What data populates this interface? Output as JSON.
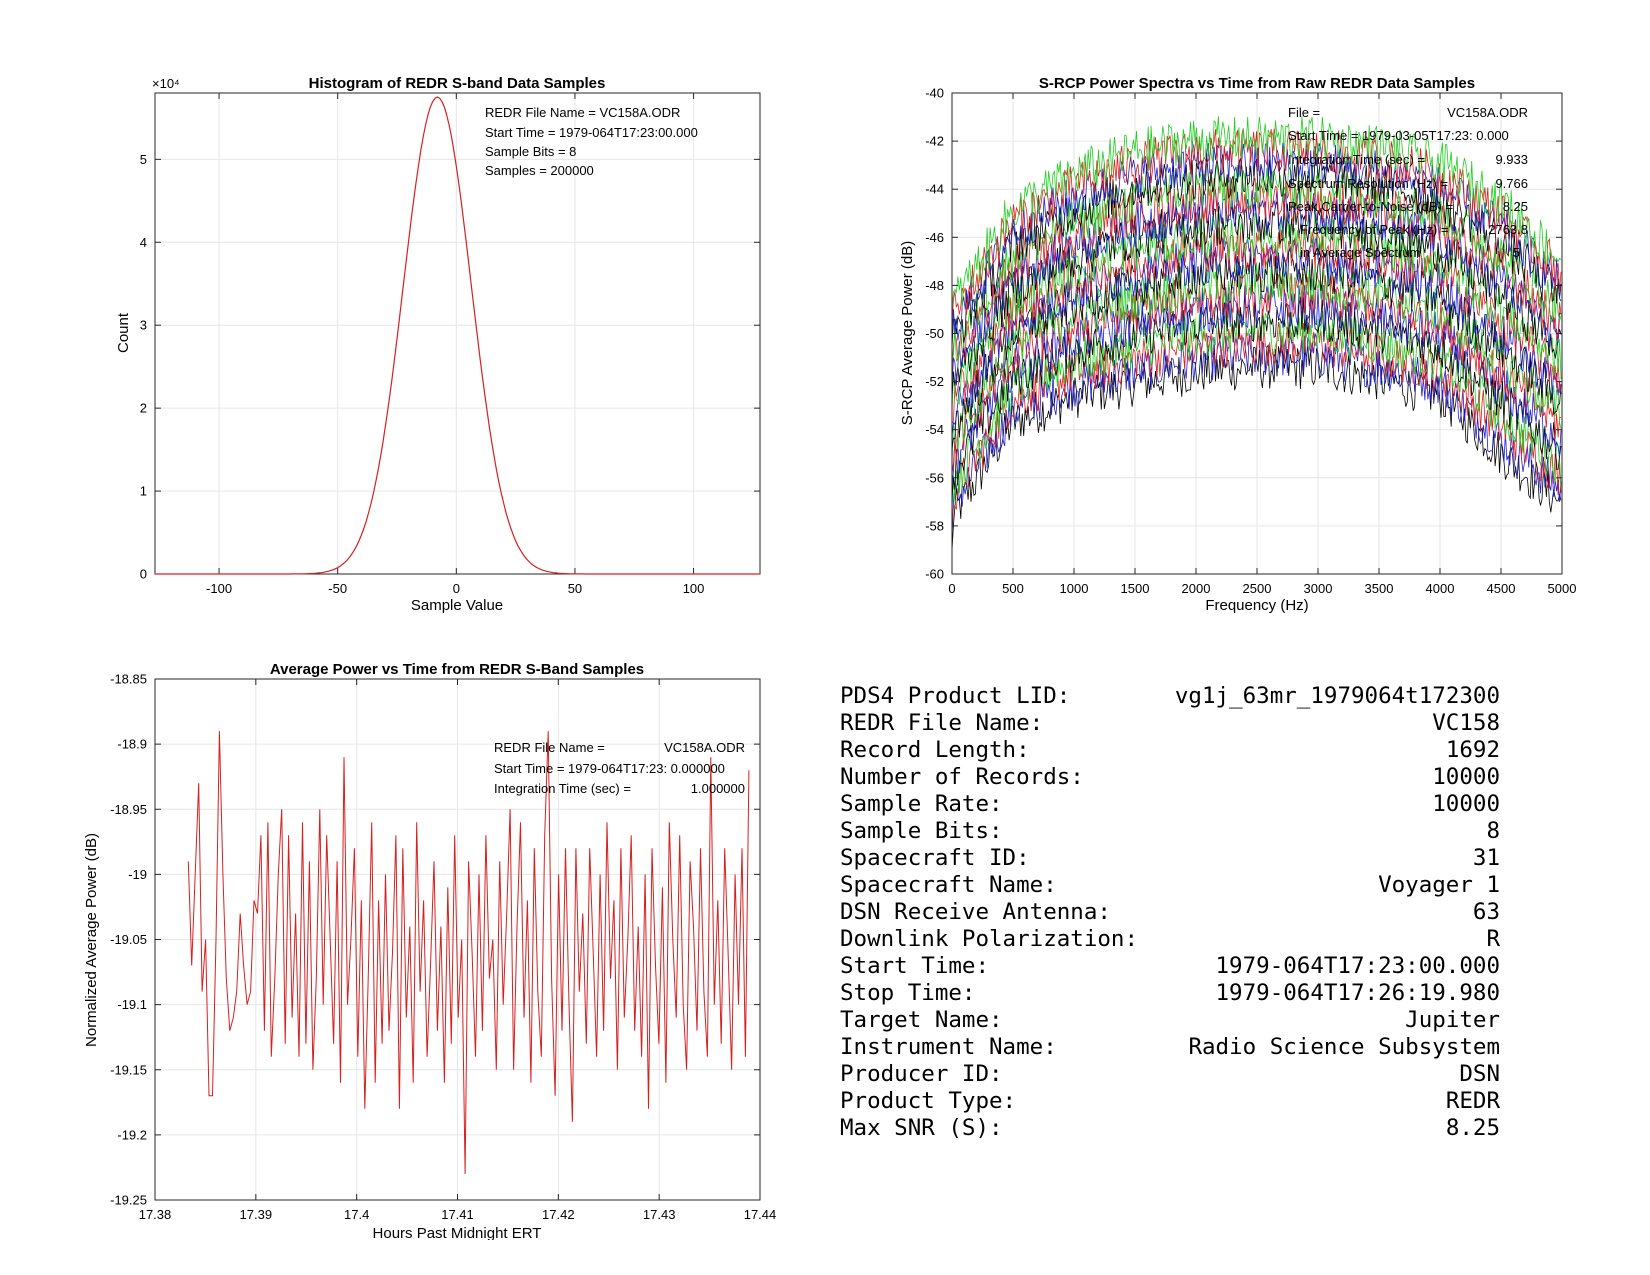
{
  "charts": {
    "histogram": {
      "title": "Histogram of REDR S-band Data Samples",
      "xlabel": "Sample Value",
      "ylabel": "Count",
      "exponent_label": "×10⁴",
      "annotations": [
        "REDR File Name = VC158A.ODR",
        "Start Time = 1979-064T17:23:00.000",
        "Sample Bits = 8",
        "Samples = 200000"
      ]
    },
    "spectra": {
      "title": "S-RCP Power Spectra vs Time from Raw REDR Data Samples",
      "xlabel": "Frequency (Hz)",
      "ylabel": "S-RCP Average Power (dB)",
      "annotations": [
        {
          "label": "File =",
          "value": "VC158A.ODR"
        },
        {
          "label": "Start Time = 1979-03-05T17:23: 0.000",
          "value": ""
        },
        {
          "label": "Integration Time (sec) =",
          "value": "9.933"
        },
        {
          "label": "Spectrum Resolution (Hz) =",
          "value": "9.766"
        },
        {
          "label": "Peak Carrier-to-Noise (dB) =",
          "value": "8.25"
        },
        {
          "label": "Frequency of Peak (Hz) =",
          "value": "2763.8"
        },
        {
          "label": "in Average Spectrum",
          "value": "5"
        }
      ]
    },
    "power": {
      "title": "Average Power vs Time from REDR S-Band Samples",
      "xlabel": "Hours Past Midnight ERT",
      "ylabel": "Normalized Average Power (dB)",
      "annotations": [
        {
          "label": "REDR File Name =",
          "value": "VC158A.ODR"
        },
        {
          "label": "Start Time = 1979-064T17:23: 0.000000",
          "value": ""
        },
        {
          "label": "Integration Time (sec) =",
          "value": "1.000000"
        }
      ]
    }
  },
  "chart_data": [
    {
      "type": "line",
      "title": "Histogram of REDR S-band Data Samples",
      "xlabel": "Sample Value",
      "ylabel": "Count",
      "xlim": [
        -127,
        128
      ],
      "ylim": [
        0,
        58000
      ],
      "xticks": [
        -100,
        -50,
        0,
        50,
        100
      ],
      "yticks": [
        0,
        10000,
        20000,
        30000,
        40000,
        50000
      ],
      "ytick_labels": [
        "0",
        "1",
        "2",
        "3",
        "4",
        "5"
      ],
      "grid": true,
      "color": "#d62020",
      "distribution": {
        "mean": -8,
        "stdev": 14.3,
        "peak": 57500
      },
      "series": [
        {
          "values": "computed from distribution over xlim"
        }
      ]
    },
    {
      "type": "line",
      "title": "S-RCP Power Spectra vs Time from Raw REDR Data Samples",
      "xlabel": "Frequency (Hz)",
      "ylabel": "S-RCP Average Power (dB)",
      "xlim": [
        0,
        5000
      ],
      "ylim": [
        -60,
        -40
      ],
      "xticks": [
        0,
        500,
        1000,
        1500,
        2000,
        2500,
        3000,
        3500,
        4000,
        4500,
        5000
      ],
      "yticks": [
        -60,
        -58,
        -56,
        -54,
        -52,
        -50,
        -48,
        -46,
        -44,
        -42,
        -40
      ],
      "grid": true,
      "colors": [
        "#000000",
        "#2020d0",
        "#e02020",
        "#20d020"
      ],
      "envelope_top_db": [
        -48,
        -44,
        -42.5,
        -41.5,
        -41,
        -41,
        -41,
        -41.3,
        -42,
        -43.5,
        -46
      ],
      "envelope_bottom_db": [
        -58.5,
        -54.5,
        -53.5,
        -53,
        -52.5,
        -52.3,
        -52.3,
        -52.8,
        -53.5,
        -56,
        -58
      ],
      "num_spectra": 20
    },
    {
      "type": "line",
      "title": "Average Power vs Time from REDR S-Band Samples",
      "xlabel": "Hours Past Midnight ERT",
      "ylabel": "Normalized Average Power (dB)",
      "xlim": [
        17.38,
        17.44
      ],
      "ylim": [
        -19.25,
        -18.85
      ],
      "xticks": [
        17.38,
        17.39,
        17.4,
        17.41,
        17.42,
        17.43,
        17.44
      ],
      "yticks": [
        -18.85,
        -18.9,
        -18.95,
        -19,
        -19.05,
        -19.1,
        -19.15,
        -19.2,
        -19.25
      ],
      "grid": true,
      "color": "#d62020",
      "x_range": [
        17.3833,
        17.4389
      ],
      "y": [
        -18.99,
        -19.07,
        -19.0,
        -18.93,
        -19.09,
        -19.05,
        -19.17,
        -19.17,
        -19.05,
        -18.89,
        -19.0,
        -19.08,
        -19.12,
        -19.11,
        -19.09,
        -19.03,
        -19.07,
        -19.1,
        -19.09,
        -19.02,
        -19.03,
        -18.97,
        -19.12,
        -18.96,
        -19.14,
        -19.08,
        -19.0,
        -18.95,
        -19.13,
        -18.97,
        -19.11,
        -19.03,
        -19.14,
        -18.96,
        -19.13,
        -18.99,
        -19.15,
        -19.08,
        -18.95,
        -19.1,
        -18.97,
        -19.05,
        -19.13,
        -18.99,
        -19.16,
        -18.91,
        -19.1,
        -19.05,
        -18.98,
        -19.14,
        -19.02,
        -19.18,
        -19.08,
        -18.96,
        -19.16,
        -19.02,
        -19.13,
        -19.0,
        -19.12,
        -19.06,
        -18.97,
        -19.18,
        -18.98,
        -19.11,
        -19.04,
        -19.16,
        -18.96,
        -19.09,
        -19.02,
        -19.14,
        -19.07,
        -18.99,
        -19.12,
        -19.04,
        -19.16,
        -19.01,
        -19.13,
        -18.97,
        -19.11,
        -19.05,
        -19.23,
        -18.99,
        -19.06,
        -19.14,
        -19.0,
        -19.12,
        -18.97,
        -19.08,
        -19.05,
        -19.15,
        -18.99,
        -19.1,
        -19.03,
        -18.95,
        -19.15,
        -19.04,
        -18.96,
        -19.11,
        -19.02,
        -19.16,
        -18.98,
        -19.09,
        -19.14,
        -18.97,
        -18.89,
        -19.08,
        -19.17,
        -19.0,
        -19.12,
        -18.98,
        -19.1,
        -19.19,
        -18.98,
        -19.09,
        -19.03,
        -19.13,
        -18.98,
        -19.06,
        -19.14,
        -19.0,
        -19.12,
        -18.96,
        -19.08,
        -19.02,
        -19.15,
        -18.98,
        -19.11,
        -19.05,
        -18.97,
        -19.12,
        -19.04,
        -19.14,
        -19.0,
        -19.18,
        -18.98,
        -19.07,
        -19.13,
        -19.01,
        -19.16,
        -18.96,
        -19.05,
        -19.11,
        -18.97,
        -19.1,
        -19.15,
        -18.99,
        -19.04,
        -19.12,
        -18.98,
        -19.09,
        -19.14,
        -18.91,
        -19.1,
        -19.02,
        -19.13,
        -18.98,
        -19.06,
        -19.15,
        -19.0,
        -19.1,
        -18.98,
        -19.14,
        -18.92
      ]
    }
  ],
  "product_info": [
    {
      "label": "PDS4 Product LID:",
      "value": "vg1j_63mr_1979064t172300"
    },
    {
      "label": "REDR File Name:",
      "value": "VC158"
    },
    {
      "label": "Record Length:",
      "value": "1692"
    },
    {
      "label": "Number of Records:",
      "value": "10000"
    },
    {
      "label": "Sample Rate:",
      "value": "10000"
    },
    {
      "label": "Sample Bits:",
      "value": "8"
    },
    {
      "label": "Spacecraft ID:",
      "value": "31"
    },
    {
      "label": "Spacecraft Name:",
      "value": "Voyager 1"
    },
    {
      "label": "DSN Receive Antenna:",
      "value": "63"
    },
    {
      "label": "Downlink Polarization:",
      "value": "R"
    },
    {
      "label": "Start Time:",
      "value": "1979-064T17:23:00.000"
    },
    {
      "label": "Stop Time:",
      "value": "1979-064T17:26:19.980"
    },
    {
      "label": "Target Name:",
      "value": "Jupiter"
    },
    {
      "label": "Instrument Name:",
      "value": "Radio Science Subsystem"
    },
    {
      "label": "Producer ID:",
      "value": "DSN"
    },
    {
      "label": "Product Type:",
      "value": "REDR"
    },
    {
      "label": "Max SNR (S):",
      "value": "8.25"
    }
  ]
}
